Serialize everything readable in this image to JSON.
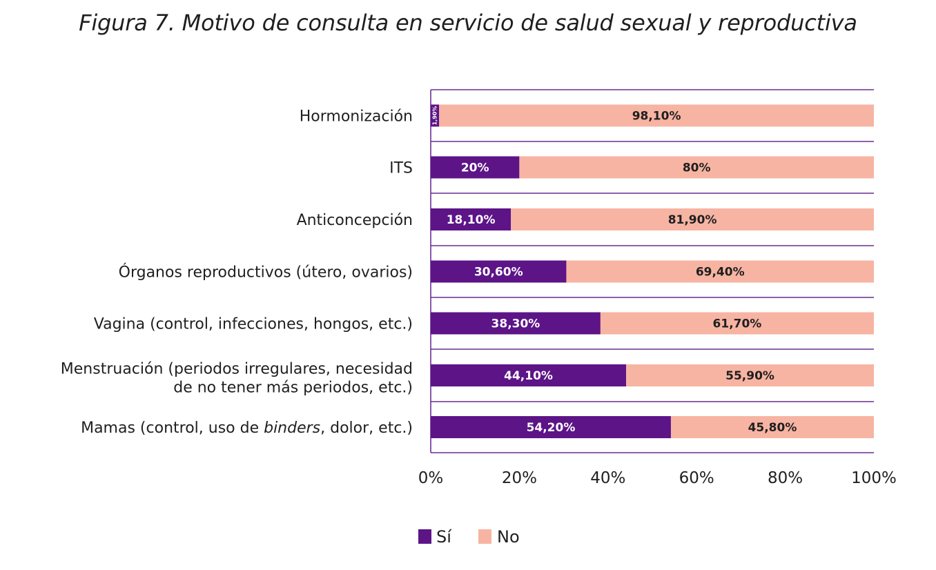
{
  "chart_data": {
    "type": "bar",
    "orientation": "horizontal",
    "stacked": true,
    "title": "Figura 7. Motivo de consulta en servicio de salud sexual y reproductiva",
    "xlabel": "",
    "ylabel": "",
    "xlim": [
      0,
      100
    ],
    "x_ticks": [
      "0%",
      "20%",
      "40%",
      "60%",
      "80%",
      "100%"
    ],
    "grid": true,
    "legend_position": "bottom",
    "categories": [
      {
        "lines": [
          "Hormonización"
        ]
      },
      {
        "lines": [
          "ITS"
        ]
      },
      {
        "lines": [
          "Anticoncepción"
        ]
      },
      {
        "lines": [
          "Órganos reproductivos (útero, ovarios)"
        ]
      },
      {
        "lines": [
          "Vagina (control, infecciones, hongos, etc.)"
        ]
      },
      {
        "lines": [
          "Menstruación (periodos irregulares, necesidad",
          "de no tener más periodos, etc.)"
        ]
      },
      {
        "lines": [
          "Mamas (control, uso de ",
          "binders",
          ", dolor, etc.)"
        ],
        "italic_segment": 1
      }
    ],
    "series": [
      {
        "name": "Sí",
        "color": "#5c1487",
        "label_color": "#ffffff",
        "values": [
          1.9,
          20,
          18.1,
          30.6,
          38.3,
          44.1,
          54.2
        ],
        "labels": [
          "1,90%",
          "20%",
          "18,10%",
          "30,60%",
          "38,30%",
          "44,10%",
          "54,20%"
        ]
      },
      {
        "name": "No",
        "color": "#f7b4a3",
        "label_color": "#1f1f1f",
        "values": [
          98.1,
          80,
          81.9,
          69.4,
          61.7,
          55.9,
          45.8
        ],
        "labels": [
          "98,10%",
          "80%",
          "81,90%",
          "69,40%",
          "61,70%",
          "55,90%",
          "45,80%"
        ]
      }
    ],
    "gridline_color": "#6a2d91",
    "axis_color": "#6a2d91"
  }
}
